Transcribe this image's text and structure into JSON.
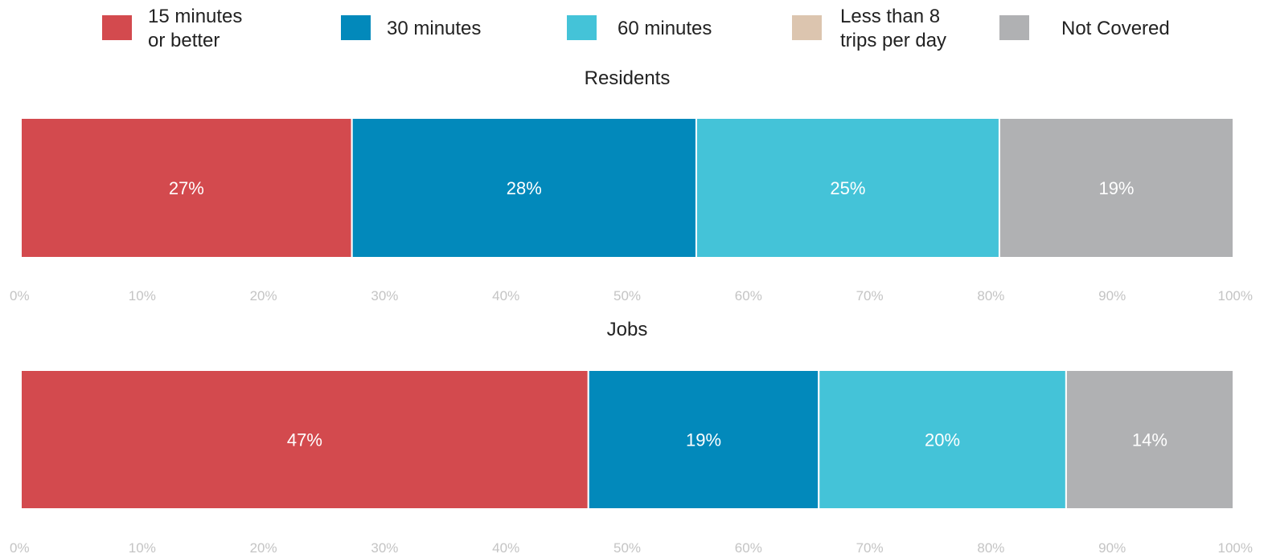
{
  "chart_data": {
    "type": "bar",
    "orientation": "horizontal",
    "stacked": true,
    "legend": {
      "placement": "top",
      "entries": [
        {
          "key": "15min",
          "lines": [
            "15 minutes",
            "or better"
          ],
          "color": "#D34A4E"
        },
        {
          "key": "30min",
          "lines": [
            "30 minutes"
          ],
          "color": "#0289BB"
        },
        {
          "key": "60min",
          "lines": [
            "60 minutes"
          ],
          "color": "#44C3D8"
        },
        {
          "key": "lt8",
          "lines": [
            "Less than 8",
            "trips per day"
          ],
          "color": "#DCC5AF"
        },
        {
          "key": "nc",
          "lines": [
            "Not Covered"
          ],
          "color": "#B0B1B3"
        }
      ]
    },
    "panels": [
      {
        "title": "Residents",
        "segments": [
          {
            "key": "15min",
            "value": 27.3,
            "label": "27%"
          },
          {
            "key": "30min",
            "value": 28.4,
            "label": "28%"
          },
          {
            "key": "60min",
            "value": 25.0,
            "label": "25%"
          },
          {
            "key": "lt8",
            "value": 0.0,
            "label": ""
          },
          {
            "key": "nc",
            "value": 19.3,
            "label": "19%"
          }
        ]
      },
      {
        "title": "Jobs",
        "segments": [
          {
            "key": "15min",
            "value": 46.8,
            "label": "47%"
          },
          {
            "key": "30min",
            "value": 19.0,
            "label": "19%"
          },
          {
            "key": "60min",
            "value": 20.4,
            "label": "20%"
          },
          {
            "key": "lt8",
            "value": 0.0,
            "label": ""
          },
          {
            "key": "nc",
            "value": 13.8,
            "label": "14%"
          }
        ]
      }
    ],
    "xlim": [
      0,
      100
    ],
    "x_ticks": [
      "0%",
      "10%",
      "20%",
      "30%",
      "40%",
      "50%",
      "60%",
      "70%",
      "80%",
      "90%",
      "100%"
    ],
    "grid": false
  }
}
